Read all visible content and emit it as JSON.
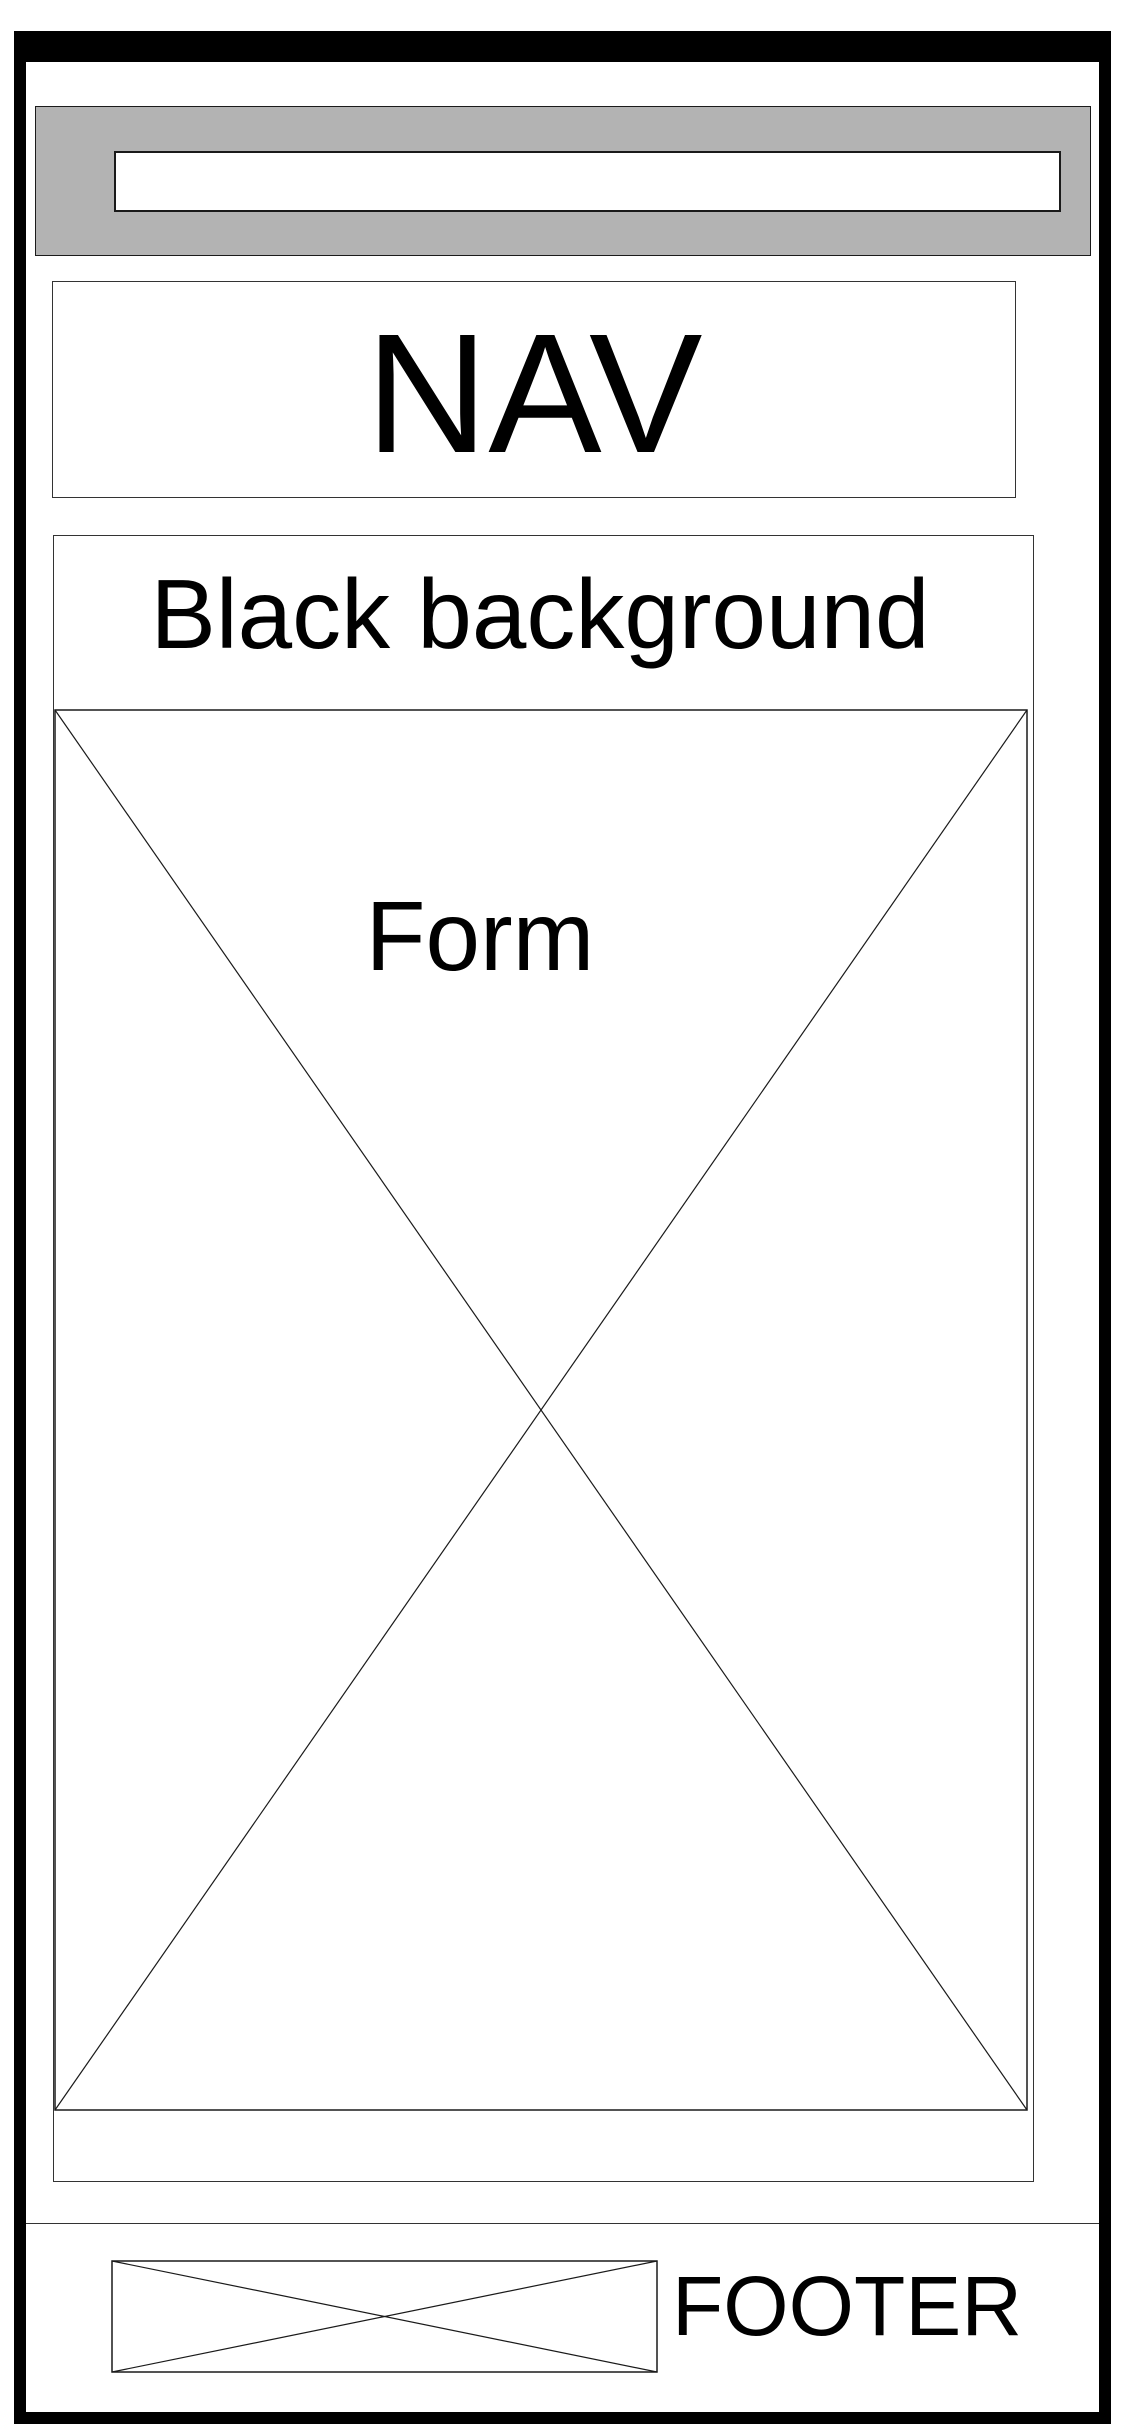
{
  "header": {
    "nav_label": "NAV"
  },
  "main": {
    "section_label": "Black background",
    "form_label": "Form"
  },
  "footer": {
    "label": "FOOTER"
  },
  "colors": {
    "frame": "#000000",
    "topbar": "#b3b3b3",
    "background": "#ffffff"
  },
  "icons": {
    "form_placeholder": "image-placeholder-icon",
    "footer_placeholder": "image-placeholder-icon"
  }
}
